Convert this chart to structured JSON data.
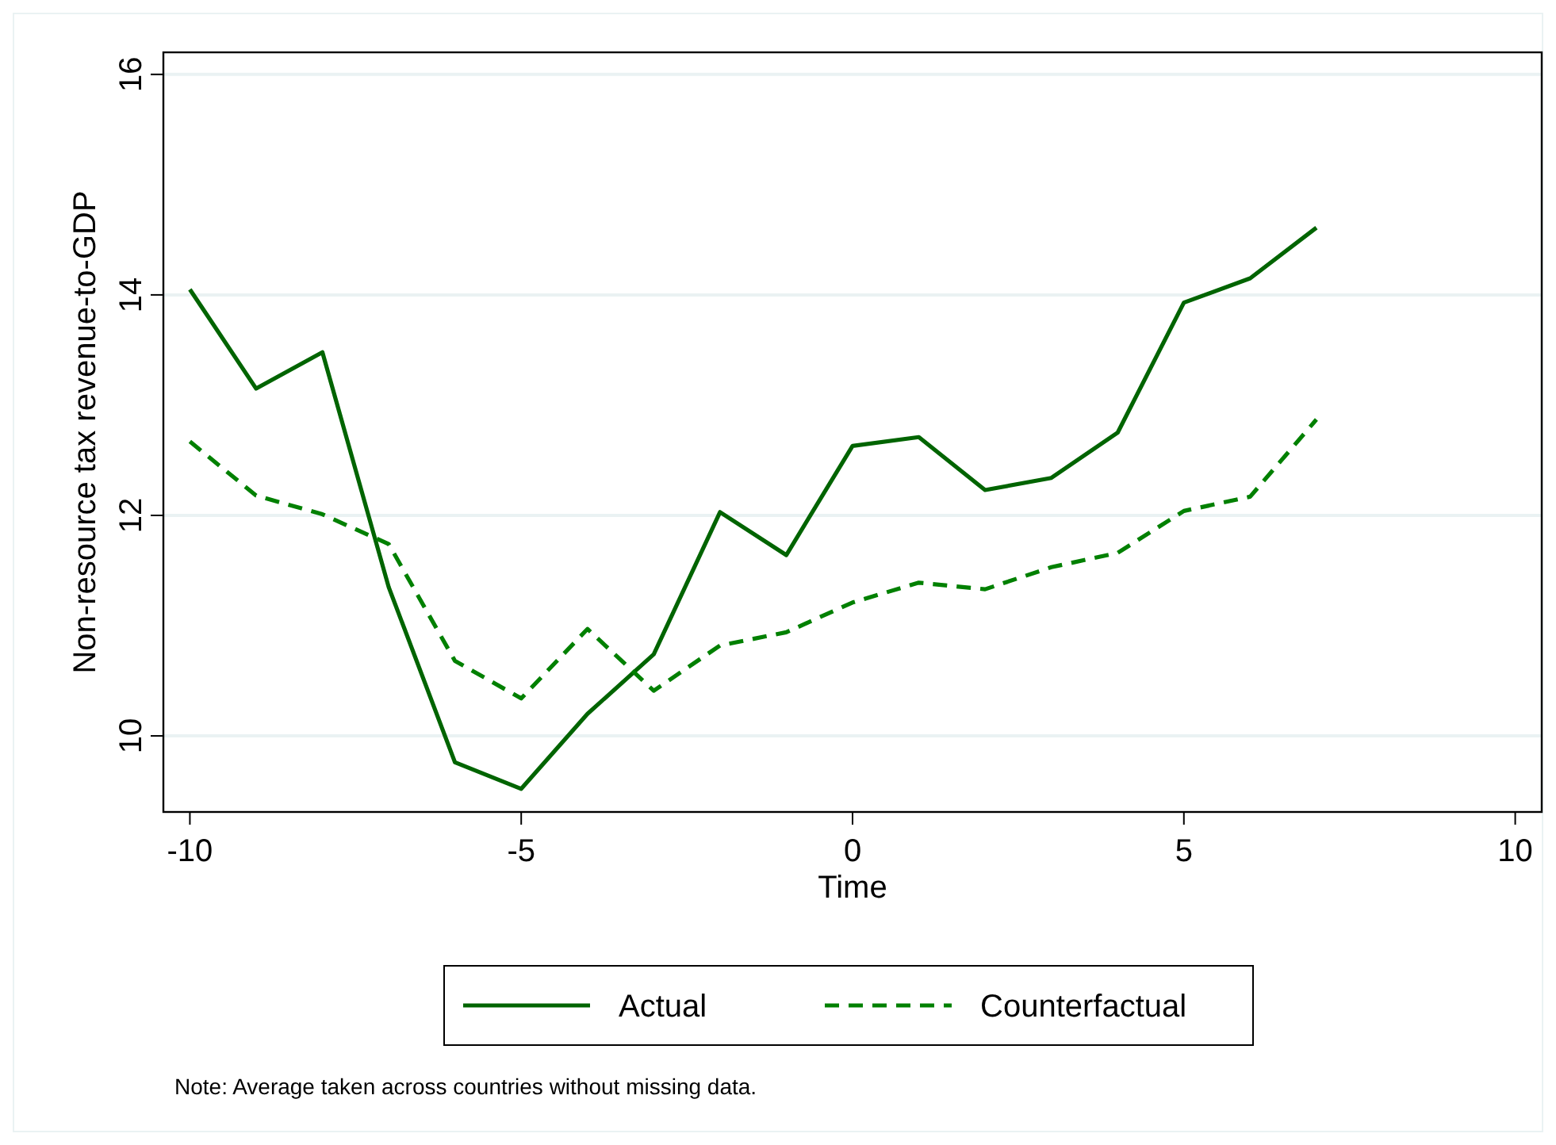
{
  "chart_data": {
    "type": "line",
    "xlabel": "Time",
    "ylabel": "Non-resource tax revenue-to-GDP",
    "x": [
      -10,
      -9,
      -8,
      -7,
      -6,
      -5,
      -4,
      -3,
      -2,
      -1,
      0,
      1,
      2,
      3,
      4,
      5,
      6,
      7
    ],
    "series": [
      {
        "name": "Actual",
        "color": "#006400",
        "line_style": "solid",
        "values": [
          14.05,
          13.15,
          13.48,
          11.35,
          9.76,
          9.52,
          10.2,
          10.74,
          12.03,
          11.64,
          12.63,
          12.71,
          12.23,
          12.34,
          12.75,
          13.93,
          14.15,
          14.61
        ]
      },
      {
        "name": "Counterfactual",
        "color": "#008000",
        "line_style": "dashed",
        "values": [
          12.67,
          12.18,
          12.01,
          11.74,
          10.68,
          10.34,
          10.97,
          10.41,
          10.82,
          10.94,
          11.21,
          11.39,
          11.33,
          11.53,
          11.66,
          12.04,
          12.17,
          12.87
        ]
      }
    ],
    "xlim": [
      -10.4,
      10.4
    ],
    "ylim": [
      9.31,
      16.2
    ],
    "xticks": [
      -10,
      -5,
      0,
      5,
      10
    ],
    "yticks": [
      10,
      12,
      14,
      16
    ],
    "grid": "y",
    "legend": "bottom",
    "marker": "none",
    "annotations": [
      "Note: Average taken across countries without missing data."
    ]
  }
}
